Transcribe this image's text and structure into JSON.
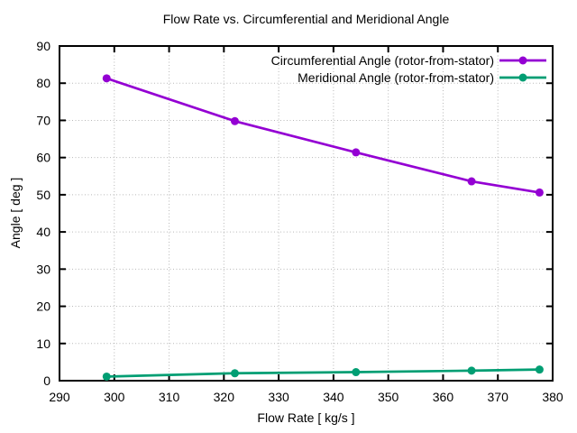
{
  "chart_data": {
    "type": "line",
    "title": "Flow Rate vs. Circumferential and Meridional Angle",
    "xlabel": "Flow Rate [ kg/s ]",
    "ylabel": "Angle [ deg ]",
    "xlim": [
      290,
      380
    ],
    "ylim": [
      0,
      90
    ],
    "xticks": [
      290,
      300,
      310,
      320,
      330,
      340,
      350,
      360,
      370,
      380
    ],
    "yticks": [
      0,
      10,
      20,
      30,
      40,
      50,
      60,
      70,
      80,
      90
    ],
    "grid": true,
    "grid_style": "dotted",
    "legend_position": "top-right-inside",
    "x": [
      298.6,
      322.0,
      344.1,
      365.2,
      377.6
    ],
    "series": [
      {
        "name": "Circumferential Angle (rotor-from-stator)",
        "color": "#9400d3",
        "marker": "filled-circle",
        "values": [
          81.3,
          69.8,
          61.4,
          53.6,
          50.6
        ]
      },
      {
        "name": "Meridional Angle (rotor-from-stator)",
        "color": "#009e73",
        "marker": "filled-circle",
        "values": [
          1.1,
          2.0,
          2.3,
          2.7,
          3.0
        ]
      }
    ],
    "colors": {
      "background": "#ffffff",
      "grid": "#b8b8b8",
      "axis": "#000000",
      "text": "#000000"
    }
  }
}
